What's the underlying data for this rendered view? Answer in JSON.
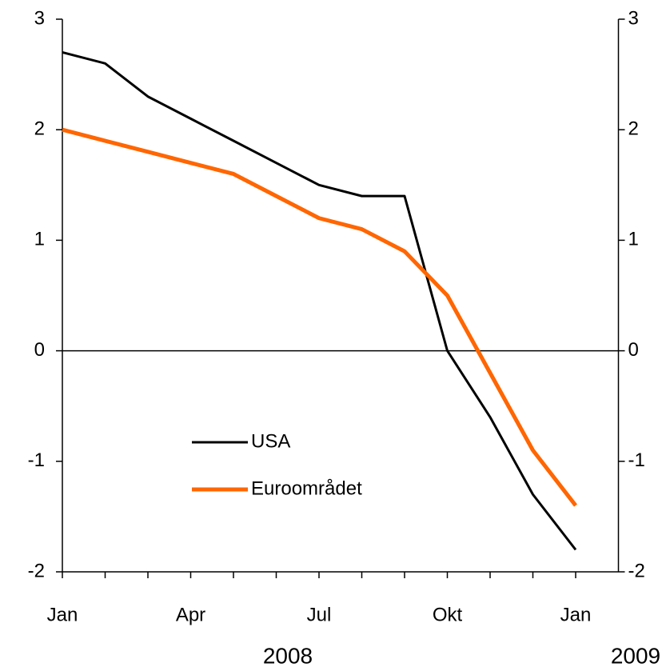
{
  "chart_data": {
    "type": "line",
    "categories": [
      "Jan",
      null,
      null,
      "Apr",
      null,
      null,
      "Jul",
      null,
      null,
      "Okt",
      null,
      null,
      "Jan"
    ],
    "year_labels": [
      "2008",
      "2009"
    ],
    "series": [
      {
        "name": "USA",
        "color": "#000000",
        "values": [
          2.7,
          2.6,
          2.3,
          2.1,
          1.9,
          1.7,
          1.5,
          1.4,
          1.4,
          0.0,
          -0.6,
          -1.3,
          -1.8
        ]
      },
      {
        "name": "Euroområdet",
        "color": "#ff6600",
        "values": [
          2.0,
          1.9,
          1.8,
          1.7,
          1.6,
          1.4,
          1.2,
          1.1,
          0.9,
          0.5,
          -0.2,
          -0.9,
          -1.4
        ]
      }
    ],
    "ylim": [
      -2,
      3
    ],
    "yticks": [
      -2,
      -1,
      0,
      1,
      2,
      3
    ],
    "y2lim": [
      -2,
      3
    ],
    "y2ticks": [
      -2,
      -1,
      0,
      1,
      2,
      3
    ],
    "zero_line": true,
    "legend": "lower left"
  }
}
